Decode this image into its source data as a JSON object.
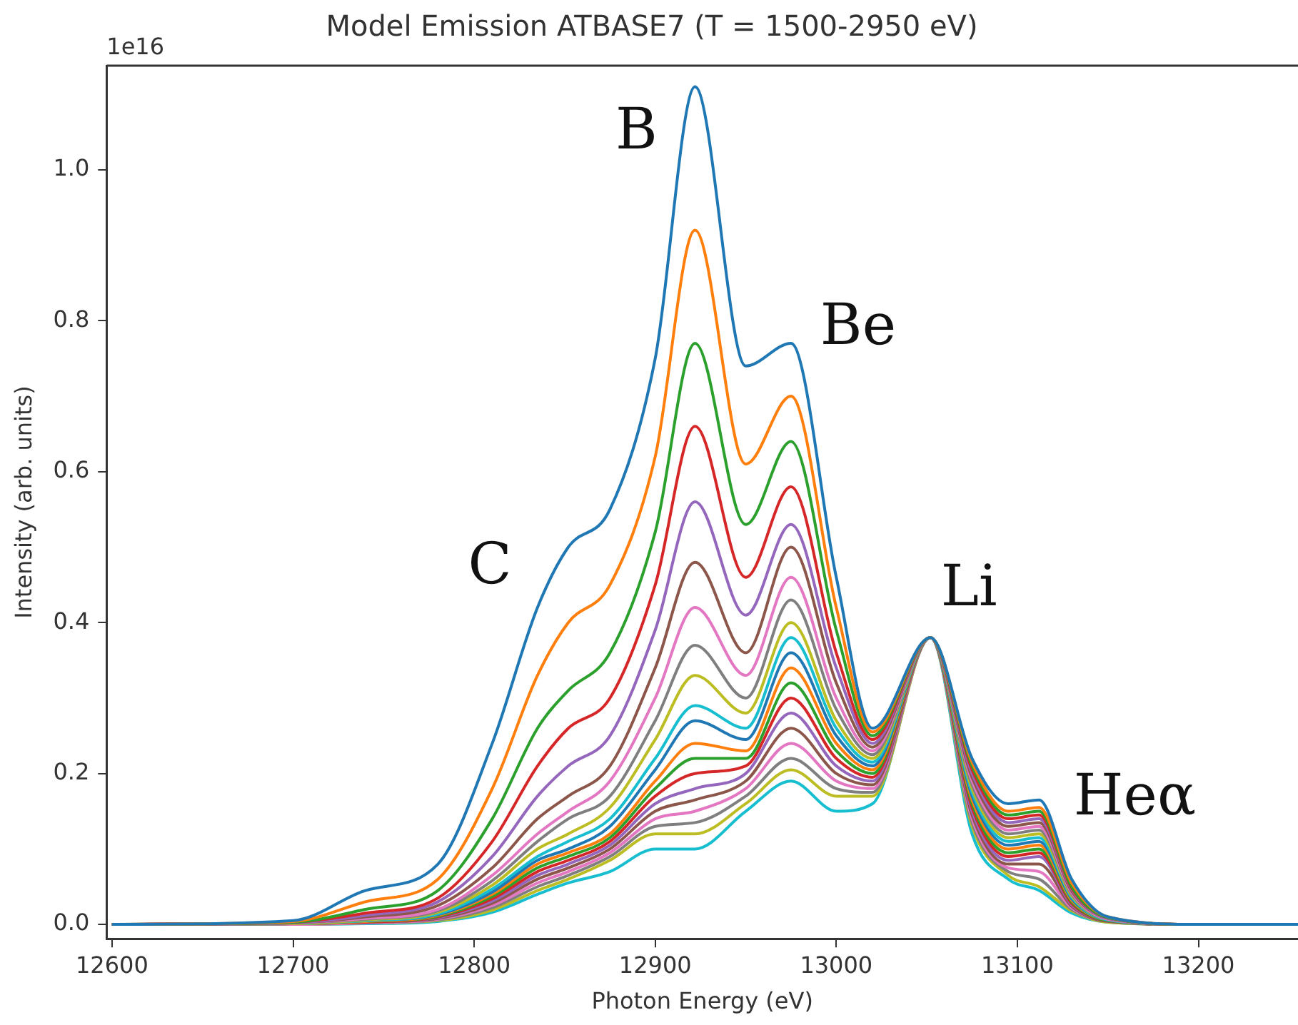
{
  "chart_data": {
    "type": "line",
    "title": "Model Emission ATBASE7 (T = 1500-2950 eV)",
    "xlabel": "Photon Energy (eV)",
    "ylabel": "Intensity (arb. units)",
    "x": [
      12600,
      12700,
      12740,
      12780,
      12810,
      12835,
      12852,
      12875,
      12900,
      12922,
      12950,
      12975,
      13000,
      13020,
      13052,
      13075,
      13095,
      13112,
      13130,
      13150,
      13200,
      13255
    ],
    "series": [
      {
        "color": "#1f77b4",
        "values": [
          0,
          0.005,
          0.045,
          0.08,
          0.24,
          0.42,
          0.5,
          0.55,
          0.75,
          1.11,
          0.74,
          0.77,
          0.46,
          0.26,
          0.38,
          0.22,
          0.16,
          0.165,
          0.06,
          0.01,
          0,
          0
        ]
      },
      {
        "color": "#ff7f0e",
        "values": [
          0,
          0.004,
          0.03,
          0.06,
          0.18,
          0.33,
          0.4,
          0.45,
          0.62,
          0.92,
          0.61,
          0.7,
          0.42,
          0.255,
          0.38,
          0.215,
          0.15,
          0.155,
          0.055,
          0.01,
          0,
          0
        ]
      },
      {
        "color": "#2ca02c",
        "values": [
          0,
          0.003,
          0.02,
          0.045,
          0.14,
          0.26,
          0.31,
          0.36,
          0.52,
          0.77,
          0.53,
          0.64,
          0.39,
          0.25,
          0.38,
          0.21,
          0.145,
          0.15,
          0.05,
          0.009,
          0,
          0
        ]
      },
      {
        "color": "#d62728",
        "values": [
          0,
          0.003,
          0.015,
          0.035,
          0.11,
          0.21,
          0.26,
          0.3,
          0.45,
          0.66,
          0.46,
          0.58,
          0.36,
          0.245,
          0.38,
          0.205,
          0.14,
          0.145,
          0.048,
          0.009,
          0,
          0
        ]
      },
      {
        "color": "#9467bd",
        "values": [
          0,
          0.002,
          0.012,
          0.03,
          0.09,
          0.17,
          0.21,
          0.25,
          0.39,
          0.56,
          0.41,
          0.53,
          0.34,
          0.24,
          0.38,
          0.2,
          0.135,
          0.14,
          0.046,
          0.008,
          0,
          0
        ]
      },
      {
        "color": "#8c564b",
        "values": [
          0,
          0.002,
          0.01,
          0.025,
          0.075,
          0.14,
          0.17,
          0.21,
          0.34,
          0.48,
          0.36,
          0.5,
          0.32,
          0.235,
          0.38,
          0.195,
          0.13,
          0.135,
          0.044,
          0.008,
          0,
          0
        ]
      },
      {
        "color": "#e377c2",
        "values": [
          0,
          0.002,
          0.008,
          0.02,
          0.065,
          0.12,
          0.15,
          0.19,
          0.3,
          0.42,
          0.33,
          0.46,
          0.3,
          0.23,
          0.38,
          0.19,
          0.125,
          0.13,
          0.042,
          0.007,
          0,
          0
        ]
      },
      {
        "color": "#7f7f7f",
        "values": [
          0,
          0.002,
          0.007,
          0.018,
          0.058,
          0.11,
          0.14,
          0.17,
          0.27,
          0.37,
          0.3,
          0.43,
          0.285,
          0.225,
          0.38,
          0.185,
          0.12,
          0.125,
          0.04,
          0.007,
          0,
          0
        ]
      },
      {
        "color": "#bcbd22",
        "values": [
          0,
          0.001,
          0.006,
          0.016,
          0.052,
          0.1,
          0.12,
          0.155,
          0.245,
          0.33,
          0.28,
          0.4,
          0.27,
          0.22,
          0.38,
          0.18,
          0.115,
          0.12,
          0.038,
          0.007,
          0,
          0
        ]
      },
      {
        "color": "#17becf",
        "values": [
          0,
          0.001,
          0.005,
          0.014,
          0.047,
          0.09,
          0.11,
          0.14,
          0.22,
          0.29,
          0.26,
          0.38,
          0.26,
          0.215,
          0.38,
          0.175,
          0.11,
          0.115,
          0.036,
          0.006,
          0,
          0
        ]
      },
      {
        "color": "#1f77b4",
        "values": [
          0,
          0.001,
          0.005,
          0.013,
          0.043,
          0.085,
          0.1,
          0.13,
          0.205,
          0.27,
          0.245,
          0.36,
          0.25,
          0.21,
          0.38,
          0.17,
          0.105,
          0.11,
          0.034,
          0.006,
          0,
          0
        ]
      },
      {
        "color": "#ff7f0e",
        "values": [
          0,
          0.001,
          0.004,
          0.012,
          0.04,
          0.08,
          0.095,
          0.12,
          0.19,
          0.24,
          0.23,
          0.34,
          0.24,
          0.205,
          0.38,
          0.165,
          0.1,
          0.105,
          0.032,
          0.006,
          0,
          0
        ]
      },
      {
        "color": "#2ca02c",
        "values": [
          0,
          0.001,
          0.004,
          0.011,
          0.037,
          0.075,
          0.09,
          0.115,
          0.18,
          0.22,
          0.22,
          0.32,
          0.23,
          0.2,
          0.38,
          0.16,
          0.095,
          0.1,
          0.03,
          0.005,
          0,
          0
        ]
      },
      {
        "color": "#d62728",
        "values": [
          0,
          0.001,
          0.003,
          0.01,
          0.034,
          0.07,
          0.085,
          0.11,
          0.17,
          0.2,
          0.21,
          0.3,
          0.22,
          0.195,
          0.38,
          0.155,
          0.09,
          0.095,
          0.028,
          0.005,
          0,
          0
        ]
      },
      {
        "color": "#9467bd",
        "values": [
          0,
          0.001,
          0.003,
          0.009,
          0.031,
          0.065,
          0.08,
          0.105,
          0.16,
          0.18,
          0.2,
          0.28,
          0.21,
          0.19,
          0.38,
          0.15,
          0.085,
          0.09,
          0.026,
          0.005,
          0,
          0
        ]
      },
      {
        "color": "#8c564b",
        "values": [
          0,
          0.001,
          0.003,
          0.008,
          0.028,
          0.06,
          0.075,
          0.1,
          0.15,
          0.165,
          0.19,
          0.26,
          0.2,
          0.185,
          0.38,
          0.145,
          0.08,
          0.08,
          0.024,
          0.004,
          0,
          0
        ]
      },
      {
        "color": "#e377c2",
        "values": [
          0,
          0,
          0.002,
          0.007,
          0.025,
          0.055,
          0.07,
          0.095,
          0.14,
          0.15,
          0.18,
          0.24,
          0.19,
          0.18,
          0.38,
          0.14,
          0.075,
          0.07,
          0.022,
          0.004,
          0,
          0
        ]
      },
      {
        "color": "#7f7f7f",
        "values": [
          0,
          0,
          0.002,
          0.006,
          0.022,
          0.05,
          0.065,
          0.09,
          0.13,
          0.135,
          0.17,
          0.22,
          0.18,
          0.175,
          0.38,
          0.135,
          0.07,
          0.06,
          0.02,
          0.004,
          0,
          0
        ]
      },
      {
        "color": "#bcbd22",
        "values": [
          0,
          0,
          0.002,
          0.005,
          0.019,
          0.045,
          0.06,
          0.085,
          0.12,
          0.12,
          0.16,
          0.205,
          0.17,
          0.17,
          0.38,
          0.13,
          0.065,
          0.05,
          0.018,
          0.003,
          0,
          0
        ]
      },
      {
        "color": "#17becf",
        "values": [
          0,
          0,
          0.001,
          0.004,
          0.016,
          0.04,
          0.055,
          0.07,
          0.1,
          0.1,
          0.15,
          0.19,
          0.15,
          0.16,
          0.38,
          0.12,
          0.06,
          0.045,
          0.015,
          0.003,
          0,
          0
        ]
      }
    ],
    "xlim": [
      12597,
      13255
    ],
    "xticks": [
      12600,
      12700,
      12800,
      12900,
      13000,
      13100,
      13200
    ],
    "ylim": [
      -0.019,
      1.138
    ],
    "yticks": [
      {
        "value": 0,
        "label": "0.0"
      },
      {
        "value": 0.2,
        "label": "0.2"
      },
      {
        "value": 0.4,
        "label": "0.4"
      },
      {
        "value": 0.6,
        "label": "0.6"
      },
      {
        "value": 0.8,
        "label": "0.8"
      },
      {
        "value": 1,
        "label": "1.0"
      }
    ],
    "grid": false,
    "legend": false,
    "annotations": [
      "1e16",
      {
        "text": "B",
        "x": 12922,
        "y": 1.11
      },
      {
        "text": "Be",
        "x": 12975,
        "y": 0.77
      },
      {
        "text": "C",
        "x": 12852,
        "y": 0.5
      },
      {
        "text": "Li",
        "x": 13052,
        "y": 0.38
      },
      {
        "text": "Heα",
        "x": 13112,
        "y": 0.165
      }
    ]
  }
}
